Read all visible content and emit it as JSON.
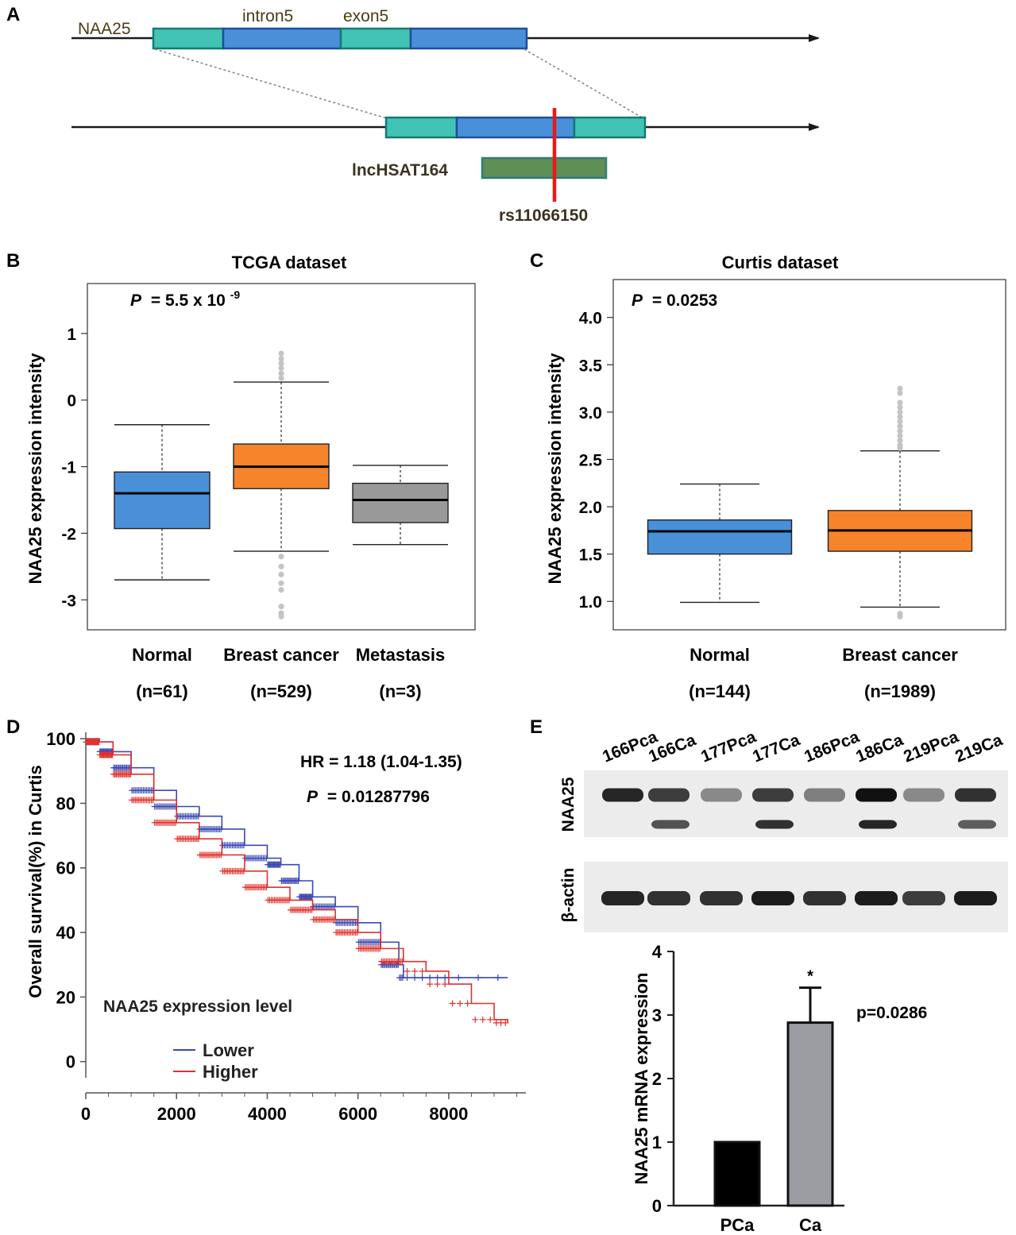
{
  "panels": {
    "a": "A",
    "b": "B",
    "c": "C",
    "d": "D",
    "e": "E"
  },
  "gene_diagram": {
    "gene": "NAA25",
    "intron": "intron5",
    "exon": "exon5",
    "lncrna": "lncHSAT164",
    "snp": "rs11066150",
    "colors": {
      "exon_teal": "#41c3b5",
      "intron_blue": "#4a90d9",
      "lnc_green": "#5f8f55",
      "snp_red": "#e8191b"
    }
  },
  "chart_data": [
    {
      "id": "tcga",
      "type": "box",
      "title": "TCGA dataset",
      "p_label": "P",
      "p_value": "= 5.5 x 10",
      "p_exp": "-9",
      "ylabel": "NAA25 expression intensity",
      "ylim": [
        -3.45,
        1.75
      ],
      "yticks": [
        "1",
        "0",
        "-1",
        "-2",
        "-3"
      ],
      "groups": [
        {
          "name": "Normal",
          "n": "(n=61)",
          "color": "#4a90d9",
          "whisker_low": -2.7,
          "q1": -1.93,
          "median": -1.4,
          "q3": -1.08,
          "whisker_high": -0.37,
          "outliers": []
        },
        {
          "name": "Breast cancer",
          "n": "(n=529)",
          "color": "#f7842a",
          "whisker_low": -2.27,
          "q1": -1.33,
          "median": -1.0,
          "q3": -0.66,
          "whisker_high": 0.27,
          "outliers": [
            0.7,
            0.62,
            0.55,
            0.48,
            0.4,
            0.33,
            -2.35,
            -2.5,
            -2.62,
            -2.75,
            -2.85,
            -3.1,
            -3.2,
            -3.25
          ]
        },
        {
          "name": "Metastasis",
          "n": "(n=3)",
          "color": "#999999",
          "whisker_low": -2.17,
          "q1": -1.84,
          "median": -1.5,
          "q3": -1.25,
          "whisker_high": -0.98,
          "outliers": []
        }
      ]
    },
    {
      "id": "curtis",
      "type": "box",
      "title": "Curtis dataset",
      "p_label": "P",
      "p_value": "= 0.0253",
      "ylabel": "NAA25 expression intensity",
      "ylim": [
        0.7,
        4.4
      ],
      "yticks": [
        "4.0",
        "3.5",
        "3.0",
        "2.5",
        "2.0",
        "1.5",
        "1.0"
      ],
      "groups": [
        {
          "name": "Normal",
          "n": "(n=144)",
          "color": "#4a90d9",
          "whisker_low": 0.99,
          "q1": 1.5,
          "median": 1.74,
          "q3": 1.86,
          "whisker_high": 2.24,
          "outliers": []
        },
        {
          "name": "Breast cancer",
          "n": "(n=1989)",
          "color": "#f7842a",
          "whisker_low": 0.94,
          "q1": 1.53,
          "median": 1.75,
          "q3": 1.96,
          "whisker_high": 2.59,
          "outliers": [
            3.25,
            3.2,
            3.1,
            3.05,
            3.0,
            2.95,
            2.9,
            2.85,
            2.8,
            2.75,
            2.7,
            2.65,
            2.62,
            0.87,
            0.84
          ]
        }
      ]
    },
    {
      "id": "survival",
      "type": "line",
      "ylabel": "Overall survival(%) in Curtis",
      "hr_text": "HR = 1.18 (1.04-1.35)",
      "p_label": "P",
      "p_value": "= 0.01287796",
      "legend_title": "NAA25 expression level",
      "xlim": [
        0,
        9700
      ],
      "ylim": [
        -5,
        102
      ],
      "xticks": [
        "0",
        "2000",
        "4000",
        "6000",
        "8000"
      ],
      "yticks": [
        "100",
        "80",
        "60",
        "40",
        "20",
        "0"
      ],
      "series": [
        {
          "name": "Lower",
          "color": "#3a48b3",
          "x": [
            0,
            300,
            600,
            1000,
            1500,
            2000,
            2500,
            3000,
            3500,
            4000,
            4300,
            4700,
            5000,
            5500,
            6000,
            6500,
            6900,
            7000,
            7500,
            8000,
            9300
          ],
          "y": [
            100,
            99,
            96,
            91,
            84,
            79,
            76,
            72,
            67,
            63,
            61,
            56,
            51,
            48,
            43,
            37,
            30,
            26,
            26,
            26,
            26
          ]
        },
        {
          "name": "Higher",
          "color": "#e3302b",
          "x": [
            0,
            300,
            600,
            1000,
            1500,
            2000,
            2500,
            3000,
            3500,
            4000,
            4500,
            5000,
            5500,
            6000,
            6500,
            7000,
            7500,
            8000,
            8500,
            9000,
            9300
          ],
          "y": [
            100,
            99,
            95,
            89,
            81,
            74,
            69,
            64,
            59,
            54,
            50,
            47,
            44,
            40,
            35,
            31,
            28,
            24,
            18,
            13,
            12
          ]
        }
      ]
    },
    {
      "id": "mrna",
      "type": "bar",
      "ylabel": "NAA25 mRNA expression",
      "categories": [
        "PCa",
        "Ca"
      ],
      "values": [
        1.0,
        2.88
      ],
      "errors": [
        0,
        0.55
      ],
      "colors": [
        "#000000",
        "#9c9ca3"
      ],
      "ylim": [
        0,
        4
      ],
      "yticks": [
        "4",
        "3",
        "2",
        "1",
        "0"
      ],
      "significance": "*",
      "p_text": "p=0.0286"
    }
  ],
  "western_blot": {
    "lanes": [
      "166Pca",
      "166Ca",
      "177Pca",
      "177Ca",
      "186Pca",
      "186Ca",
      "219Pca",
      "219Ca"
    ],
    "row_labels": {
      "target": "NAA25",
      "control": "β-actin"
    }
  }
}
